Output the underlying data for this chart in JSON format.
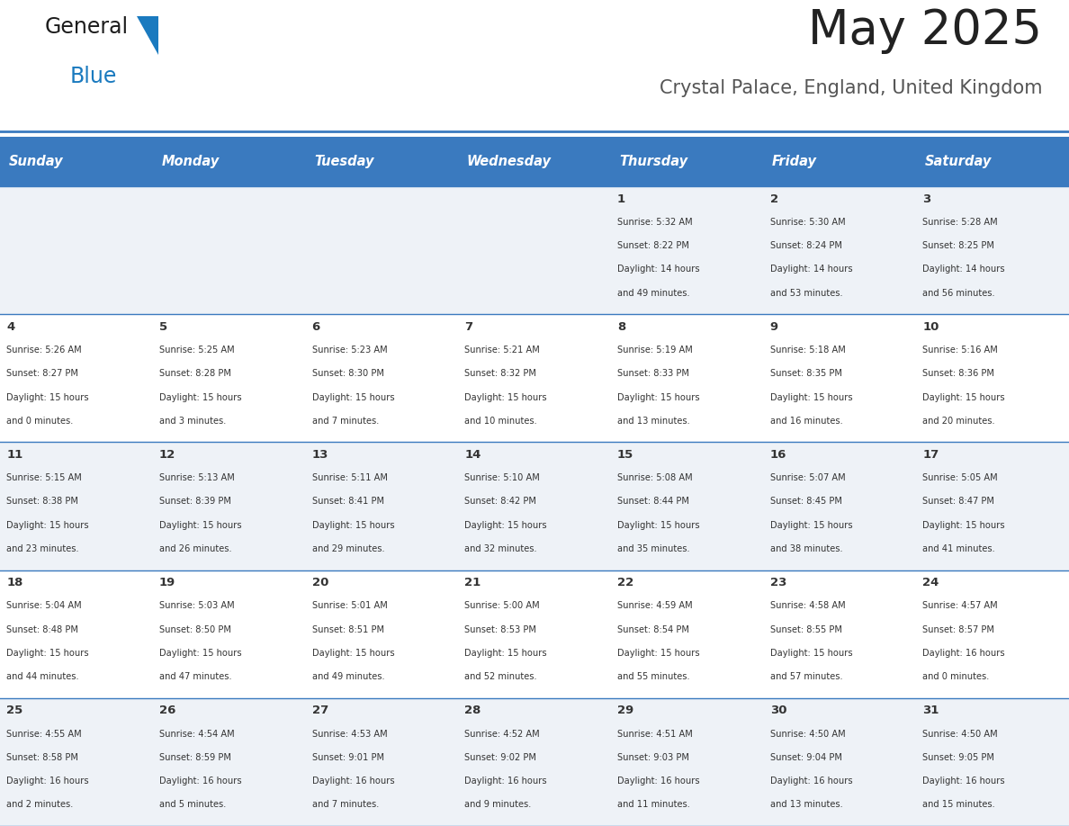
{
  "title": "May 2025",
  "subtitle": "Crystal Palace, England, United Kingdom",
  "days_of_week": [
    "Sunday",
    "Monday",
    "Tuesday",
    "Wednesday",
    "Thursday",
    "Friday",
    "Saturday"
  ],
  "header_bg": "#3a7abf",
  "header_text_color": "#ffffff",
  "cell_bg_odd": "#eef2f7",
  "cell_bg_even": "#ffffff",
  "row_line_color": "#3a7abf",
  "title_color": "#222222",
  "subtitle_color": "#555555",
  "day_num_color": "#333333",
  "cell_text_color": "#333333",
  "calendar": [
    [
      {
        "day": "",
        "sunrise": "",
        "sunset": "",
        "daylight": ""
      },
      {
        "day": "",
        "sunrise": "",
        "sunset": "",
        "daylight": ""
      },
      {
        "day": "",
        "sunrise": "",
        "sunset": "",
        "daylight": ""
      },
      {
        "day": "",
        "sunrise": "",
        "sunset": "",
        "daylight": ""
      },
      {
        "day": "1",
        "sunrise": "5:32 AM",
        "sunset": "8:22 PM",
        "daylight": "14 hours and 49 minutes."
      },
      {
        "day": "2",
        "sunrise": "5:30 AM",
        "sunset": "8:24 PM",
        "daylight": "14 hours and 53 minutes."
      },
      {
        "day": "3",
        "sunrise": "5:28 AM",
        "sunset": "8:25 PM",
        "daylight": "14 hours and 56 minutes."
      }
    ],
    [
      {
        "day": "4",
        "sunrise": "5:26 AM",
        "sunset": "8:27 PM",
        "daylight": "15 hours and 0 minutes."
      },
      {
        "day": "5",
        "sunrise": "5:25 AM",
        "sunset": "8:28 PM",
        "daylight": "15 hours and 3 minutes."
      },
      {
        "day": "6",
        "sunrise": "5:23 AM",
        "sunset": "8:30 PM",
        "daylight": "15 hours and 7 minutes."
      },
      {
        "day": "7",
        "sunrise": "5:21 AM",
        "sunset": "8:32 PM",
        "daylight": "15 hours and 10 minutes."
      },
      {
        "day": "8",
        "sunrise": "5:19 AM",
        "sunset": "8:33 PM",
        "daylight": "15 hours and 13 minutes."
      },
      {
        "day": "9",
        "sunrise": "5:18 AM",
        "sunset": "8:35 PM",
        "daylight": "15 hours and 16 minutes."
      },
      {
        "day": "10",
        "sunrise": "5:16 AM",
        "sunset": "8:36 PM",
        "daylight": "15 hours and 20 minutes."
      }
    ],
    [
      {
        "day": "11",
        "sunrise": "5:15 AM",
        "sunset": "8:38 PM",
        "daylight": "15 hours and 23 minutes."
      },
      {
        "day": "12",
        "sunrise": "5:13 AM",
        "sunset": "8:39 PM",
        "daylight": "15 hours and 26 minutes."
      },
      {
        "day": "13",
        "sunrise": "5:11 AM",
        "sunset": "8:41 PM",
        "daylight": "15 hours and 29 minutes."
      },
      {
        "day": "14",
        "sunrise": "5:10 AM",
        "sunset": "8:42 PM",
        "daylight": "15 hours and 32 minutes."
      },
      {
        "day": "15",
        "sunrise": "5:08 AM",
        "sunset": "8:44 PM",
        "daylight": "15 hours and 35 minutes."
      },
      {
        "day": "16",
        "sunrise": "5:07 AM",
        "sunset": "8:45 PM",
        "daylight": "15 hours and 38 minutes."
      },
      {
        "day": "17",
        "sunrise": "5:05 AM",
        "sunset": "8:47 PM",
        "daylight": "15 hours and 41 minutes."
      }
    ],
    [
      {
        "day": "18",
        "sunrise": "5:04 AM",
        "sunset": "8:48 PM",
        "daylight": "15 hours and 44 minutes."
      },
      {
        "day": "19",
        "sunrise": "5:03 AM",
        "sunset": "8:50 PM",
        "daylight": "15 hours and 47 minutes."
      },
      {
        "day": "20",
        "sunrise": "5:01 AM",
        "sunset": "8:51 PM",
        "daylight": "15 hours and 49 minutes."
      },
      {
        "day": "21",
        "sunrise": "5:00 AM",
        "sunset": "8:53 PM",
        "daylight": "15 hours and 52 minutes."
      },
      {
        "day": "22",
        "sunrise": "4:59 AM",
        "sunset": "8:54 PM",
        "daylight": "15 hours and 55 minutes."
      },
      {
        "day": "23",
        "sunrise": "4:58 AM",
        "sunset": "8:55 PM",
        "daylight": "15 hours and 57 minutes."
      },
      {
        "day": "24",
        "sunrise": "4:57 AM",
        "sunset": "8:57 PM",
        "daylight": "16 hours and 0 minutes."
      }
    ],
    [
      {
        "day": "25",
        "sunrise": "4:55 AM",
        "sunset": "8:58 PM",
        "daylight": "16 hours and 2 minutes."
      },
      {
        "day": "26",
        "sunrise": "4:54 AM",
        "sunset": "8:59 PM",
        "daylight": "16 hours and 5 minutes."
      },
      {
        "day": "27",
        "sunrise": "4:53 AM",
        "sunset": "9:01 PM",
        "daylight": "16 hours and 7 minutes."
      },
      {
        "day": "28",
        "sunrise": "4:52 AM",
        "sunset": "9:02 PM",
        "daylight": "16 hours and 9 minutes."
      },
      {
        "day": "29",
        "sunrise": "4:51 AM",
        "sunset": "9:03 PM",
        "daylight": "16 hours and 11 minutes."
      },
      {
        "day": "30",
        "sunrise": "4:50 AM",
        "sunset": "9:04 PM",
        "daylight": "16 hours and 13 minutes."
      },
      {
        "day": "31",
        "sunrise": "4:50 AM",
        "sunset": "9:05 PM",
        "daylight": "16 hours and 15 minutes."
      }
    ]
  ]
}
